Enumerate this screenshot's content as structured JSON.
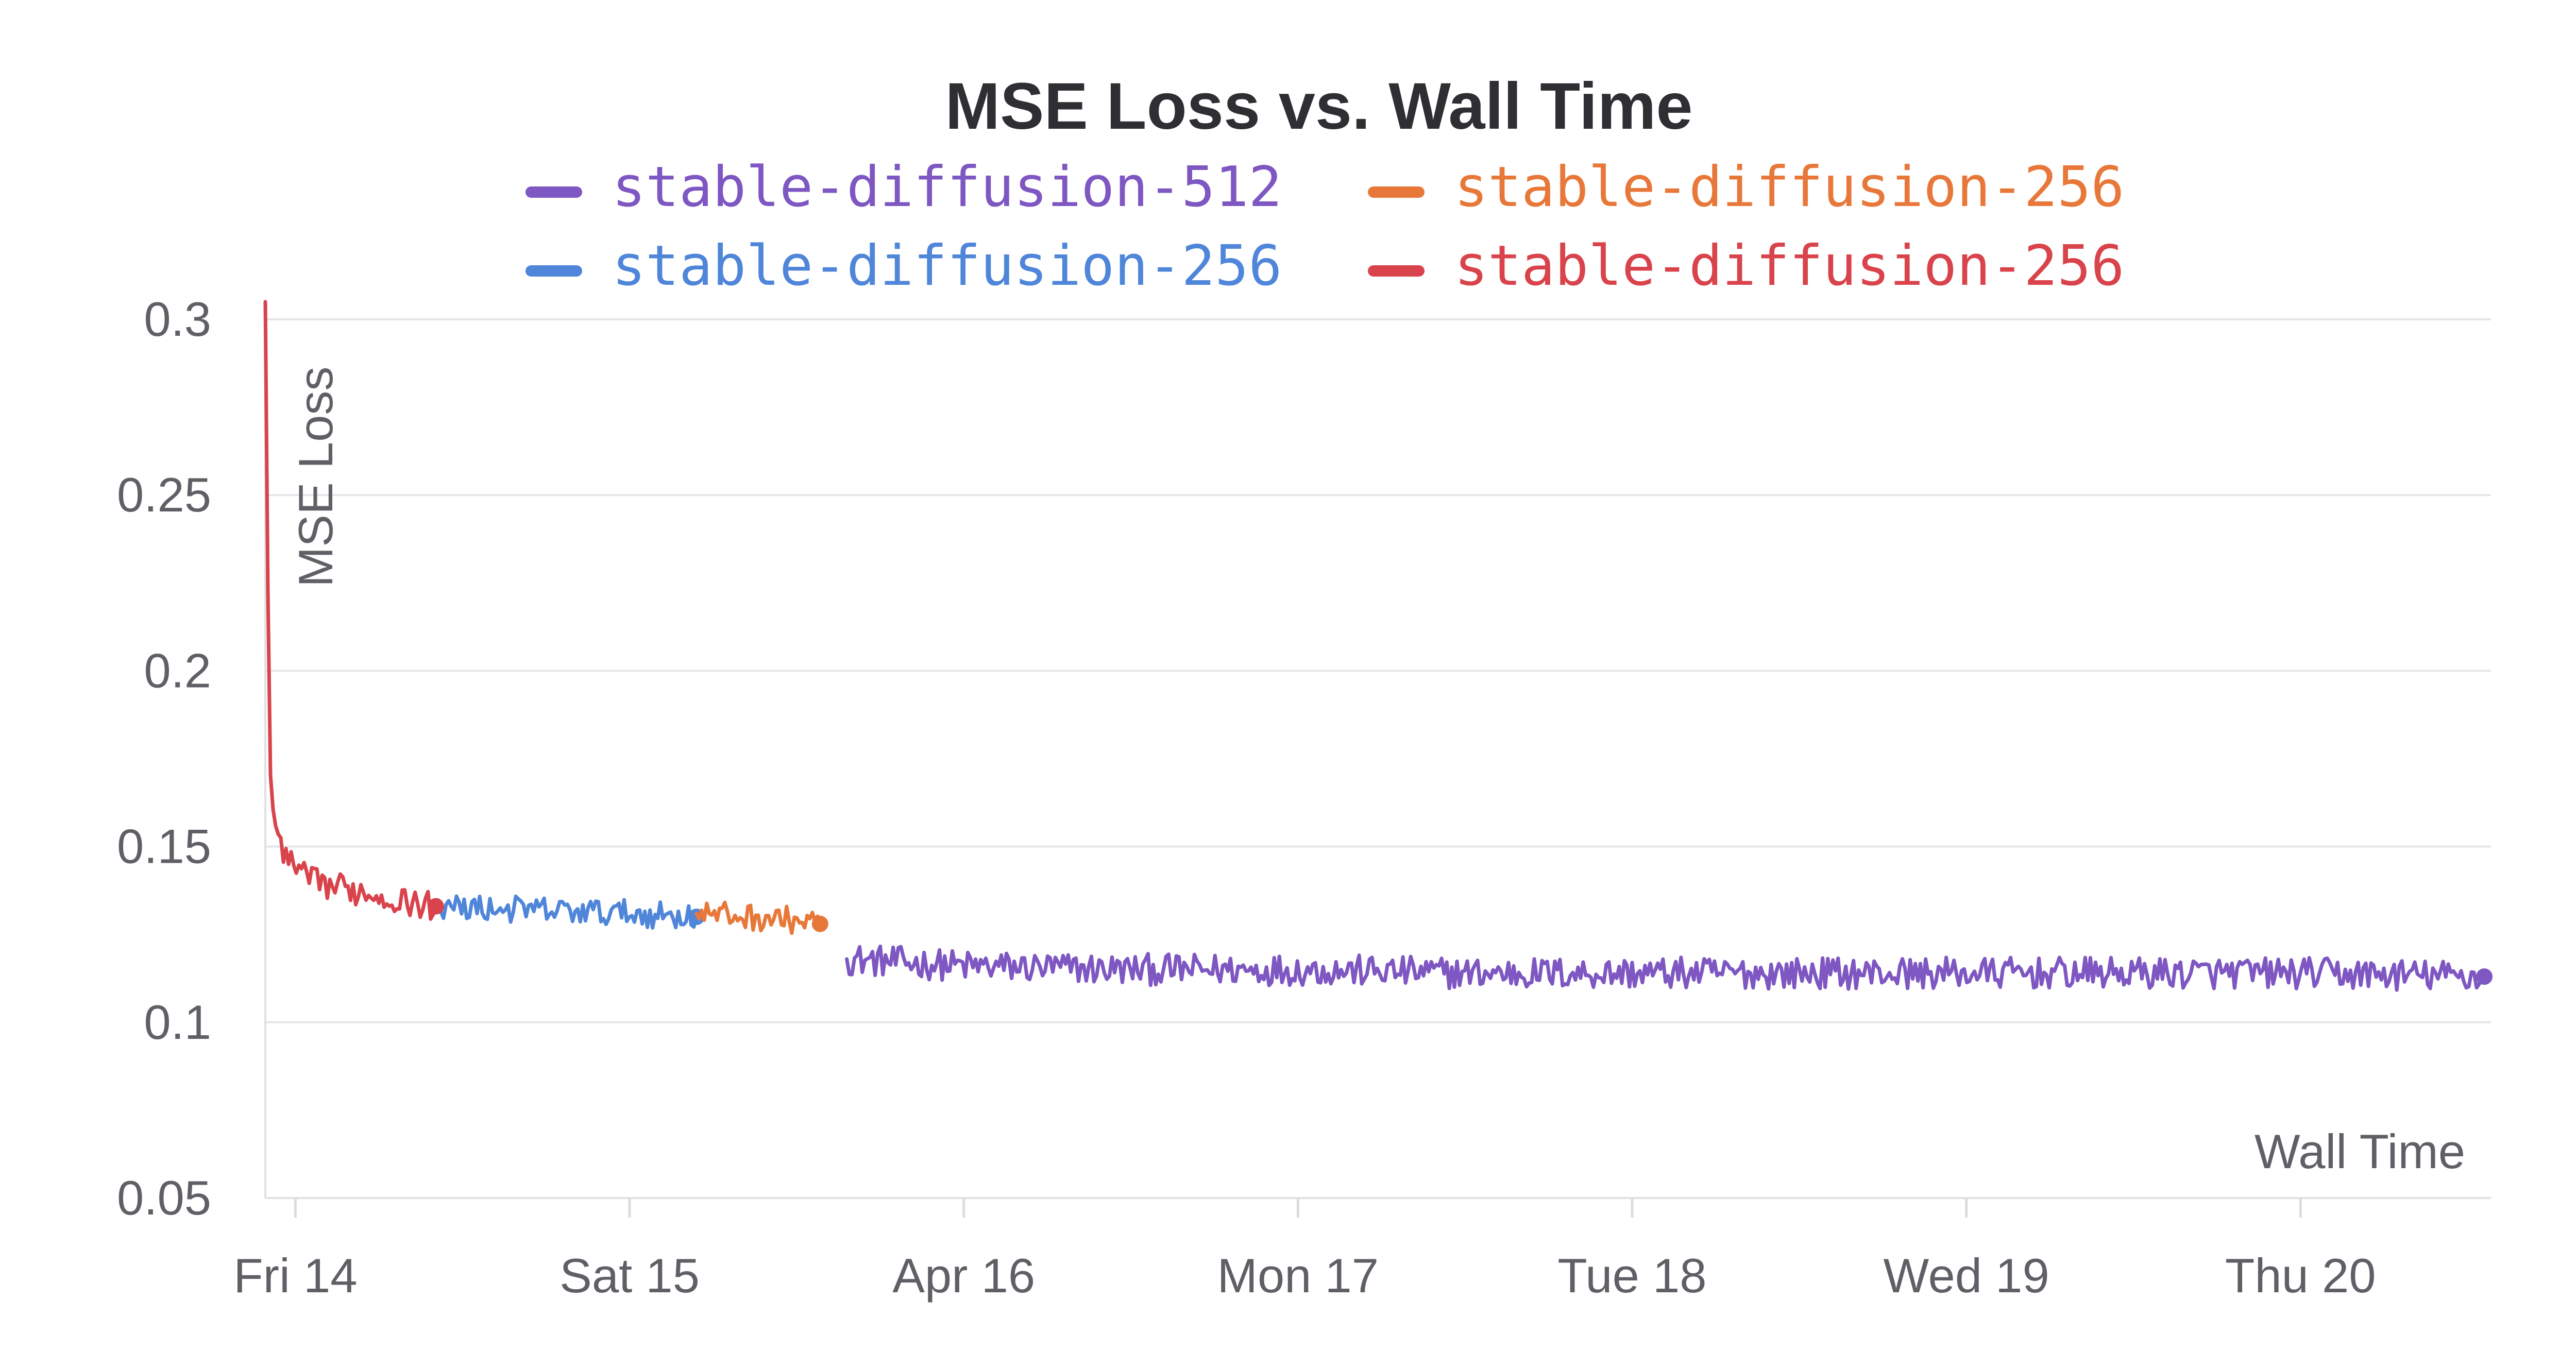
{
  "chart_data": {
    "type": "line",
    "title": "MSE Loss vs. Wall Time",
    "xlabel": "Wall Time",
    "ylabel": "MSE Loss",
    "x_axis_type": "time",
    "x_start": "Fri 14",
    "x_range_days": [
      -0.09,
      6.57
    ],
    "x_ticks": [
      {
        "label": "Fri 14",
        "day": 0
      },
      {
        "label": "Sat 15",
        "day": 1
      },
      {
        "label": "Apr 16",
        "day": 2
      },
      {
        "label": "Mon 17",
        "day": 3
      },
      {
        "label": "Tue 18",
        "day": 4
      },
      {
        "label": "Wed 19",
        "day": 5
      },
      {
        "label": "Thu 20",
        "day": 6
      }
    ],
    "ylim": [
      0.05,
      0.3
    ],
    "y_ticks": [
      {
        "label": "0.05",
        "value": 0.05
      },
      {
        "label": "0.1",
        "value": 0.1
      },
      {
        "label": "0.15",
        "value": 0.15
      },
      {
        "label": "0.2",
        "value": 0.2
      },
      {
        "label": "0.25",
        "value": 0.25
      },
      {
        "label": "0.3",
        "value": 0.3
      }
    ],
    "grid": true,
    "legend_position": "top-center",
    "series": [
      {
        "name": "stable-diffusion-512",
        "color": "#7e57c2",
        "points": [
          [
            1.65,
            0.118
          ],
          [
            2.0,
            0.116
          ],
          [
            2.5,
            0.115
          ],
          [
            3.0,
            0.115
          ],
          [
            3.5,
            0.114
          ],
          [
            4.0,
            0.114
          ],
          [
            4.5,
            0.114
          ],
          [
            5.0,
            0.114
          ],
          [
            5.5,
            0.114
          ],
          [
            6.0,
            0.114
          ],
          [
            6.55,
            0.113
          ]
        ],
        "noise": 0.0045
      },
      {
        "name": "stable-diffusion-256",
        "color": "#e8783a",
        "points": [
          [
            1.2,
            0.131
          ],
          [
            1.35,
            0.13
          ],
          [
            1.5,
            0.129
          ],
          [
            1.57,
            0.128
          ]
        ],
        "noise": 0.0038
      },
      {
        "name": "stable-diffusion-256",
        "color": "#4f86d9",
        "points": [
          [
            0.42,
            0.133
          ],
          [
            0.7,
            0.132
          ],
          [
            1.0,
            0.131
          ],
          [
            1.2,
            0.13
          ]
        ],
        "noise": 0.0038
      },
      {
        "name": "stable-diffusion-256",
        "color": "#d9434b",
        "points": [
          [
            -0.09,
            0.305
          ],
          [
            -0.085,
            0.25
          ],
          [
            -0.08,
            0.2
          ],
          [
            -0.075,
            0.17
          ],
          [
            -0.06,
            0.155
          ],
          [
            -0.03,
            0.146
          ],
          [
            0.05,
            0.14
          ],
          [
            0.2,
            0.137
          ],
          [
            0.35,
            0.134
          ],
          [
            0.42,
            0.133
          ]
        ],
        "noise": 0.004
      }
    ]
  }
}
